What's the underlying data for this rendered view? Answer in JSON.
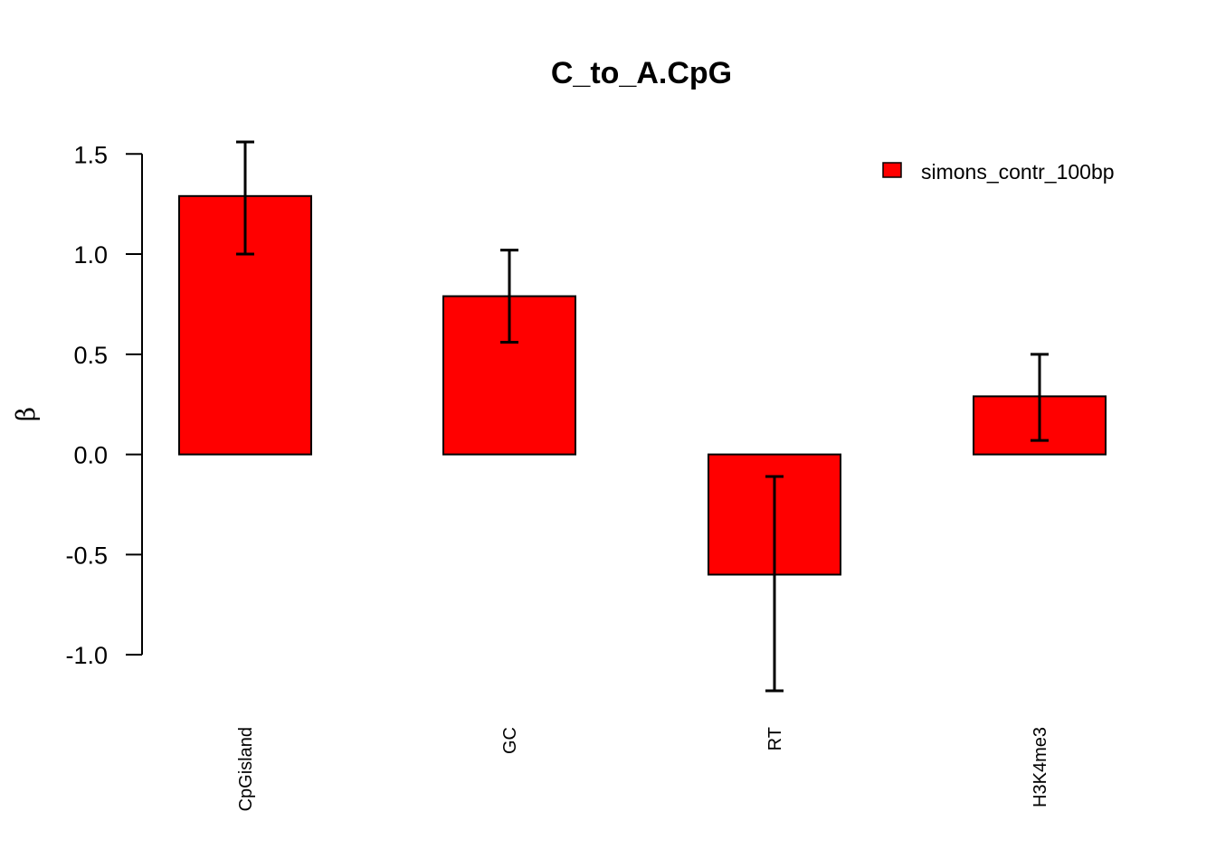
{
  "chart_data": {
    "type": "bar",
    "title": "C_to_A.CpG",
    "xlabel": "",
    "ylabel": "β",
    "categories": [
      "CpGisland",
      "GC",
      "RT",
      "H3K4me3"
    ],
    "series": [
      {
        "name": "simons_contr_100bp",
        "values": [
          1.29,
          0.79,
          -0.6,
          0.29
        ],
        "error_low": [
          1.0,
          0.56,
          -1.18,
          0.07
        ],
        "error_high": [
          1.56,
          1.02,
          -0.11,
          0.5
        ],
        "color": "#ff0000"
      }
    ],
    "yticks": [
      "-1.0",
      "-0.5",
      "0.0",
      "0.5",
      "1.0",
      "1.5"
    ],
    "ytick_values": [
      -1.0,
      -0.5,
      0.0,
      0.5,
      1.0,
      1.5
    ],
    "ylim": [
      -1.18,
      1.56
    ],
    "grid": false,
    "legend_position": "top-right",
    "x_tick_label_orientation": "vertical"
  }
}
